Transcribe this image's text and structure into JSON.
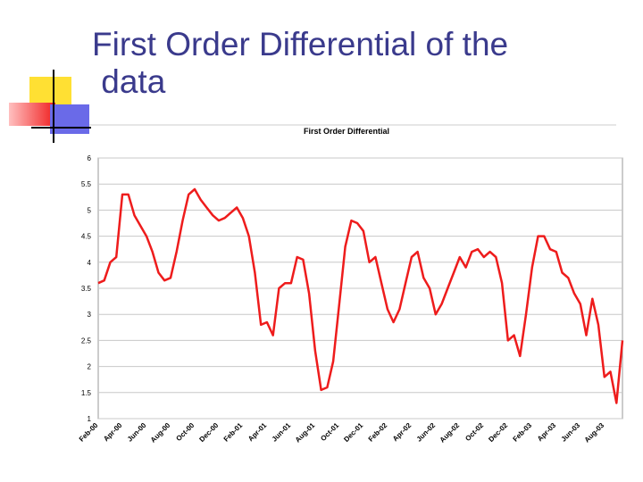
{
  "slide": {
    "title": "First Order Differential of the data"
  },
  "chart_data": {
    "type": "line",
    "title": "First Order Differential",
    "categories": [
      "Feb-00",
      null,
      null,
      null,
      "Apr-00",
      null,
      null,
      null,
      "Jun-00",
      null,
      null,
      null,
      "Aug-00",
      null,
      null,
      null,
      "Oct-00",
      null,
      null,
      null,
      "Dec-00",
      null,
      null,
      null,
      "Feb-01",
      null,
      null,
      null,
      "Apr-01",
      null,
      null,
      null,
      "Jun-01",
      null,
      null,
      null,
      "Aug-01",
      null,
      null,
      null,
      "Oct-01",
      null,
      null,
      null,
      "Dec-01",
      null,
      null,
      null,
      "Feb-02",
      null,
      null,
      null,
      "Apr-02",
      null,
      null,
      null,
      "Jun-02",
      null,
      null,
      null,
      "Aug-02",
      null,
      null,
      null,
      "Oct-02",
      null,
      null,
      null,
      "Dec-02",
      null,
      null,
      null,
      "Feb-03",
      null,
      null,
      null,
      "Apr-03",
      null,
      null,
      null,
      "Jun-03",
      null,
      null,
      null,
      "Aug-03",
      null,
      null,
      null
    ],
    "series": [
      {
        "name": "First Order Differential",
        "color": "#ee1c1c",
        "values": [
          3.6,
          3.65,
          4.0,
          4.1,
          5.3,
          5.3,
          4.9,
          4.7,
          4.5,
          4.2,
          3.8,
          3.65,
          3.7,
          4.2,
          4.8,
          5.3,
          5.4,
          5.2,
          5.05,
          4.9,
          4.8,
          4.85,
          4.95,
          5.05,
          4.85,
          4.5,
          3.8,
          2.8,
          2.85,
          2.6,
          3.5,
          3.6,
          3.6,
          4.1,
          4.05,
          3.4,
          2.3,
          1.55,
          1.6,
          2.1,
          3.2,
          4.3,
          4.8,
          4.75,
          4.6,
          4.0,
          4.1,
          3.6,
          3.1,
          2.85,
          3.1,
          3.6,
          4.1,
          4.2,
          3.7,
          3.5,
          3.0,
          3.2,
          3.5,
          3.8,
          4.1,
          3.9,
          4.2,
          4.25,
          4.1,
          4.2,
          4.1,
          3.6,
          2.5,
          2.6,
          2.2,
          3.0,
          3.9,
          4.5,
          4.5,
          4.25,
          4.2,
          3.8,
          3.7,
          3.4,
          3.2,
          2.6,
          3.3,
          2.8,
          1.8,
          1.9,
          1.3,
          2.5
        ]
      }
    ],
    "ylim": [
      1,
      6
    ],
    "yticks": [
      1,
      1.5,
      2,
      2.5,
      3,
      3.5,
      4,
      4.5,
      5,
      5.5,
      6
    ],
    "grid": true
  }
}
